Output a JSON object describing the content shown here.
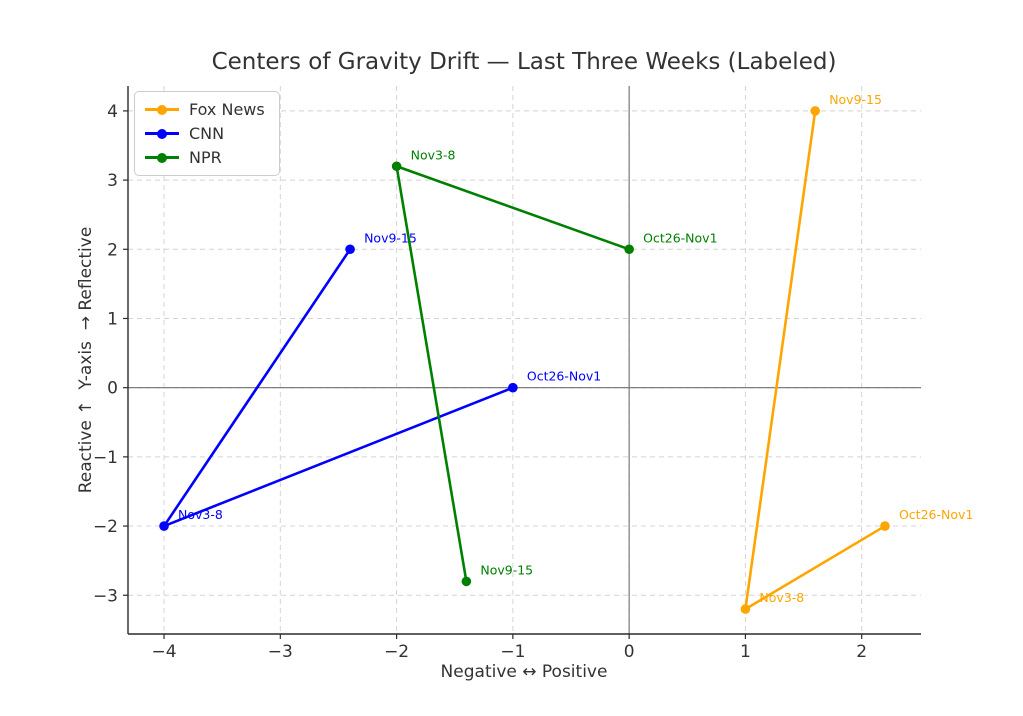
{
  "chart_data": {
    "type": "line",
    "title": "Centers of Gravity Drift — Last Three Weeks (Labeled)",
    "xlabel": "Negative ↔ Positive",
    "ylabel": "Reactive ↑  Y-axis  → Reflective",
    "xlim": [
      -4.31,
      2.51
    ],
    "ylim": [
      -3.56,
      4.36
    ],
    "xticks": [
      -4,
      -3,
      -2,
      -1,
      0,
      1,
      2
    ],
    "xtick_labels": [
      "−4",
      "−3",
      "−2",
      "−1",
      "0",
      "1",
      "2"
    ],
    "yticks": [
      4,
      3,
      2,
      1,
      0,
      -1,
      -2,
      -3
    ],
    "ytick_labels": [
      "4",
      "3",
      "2",
      "1",
      "0",
      "−1",
      "−2",
      "−3"
    ],
    "grid": true,
    "grid_style": "dashed",
    "zero_lines": true,
    "legend_position": "upper left",
    "series": [
      {
        "name": "Fox News",
        "color": "#FFA500",
        "points": [
          {
            "label": "Oct26-Nov1",
            "x": 2.2,
            "y": -2.0
          },
          {
            "label": "Nov3-8",
            "x": 1.0,
            "y": -3.2
          },
          {
            "label": "Nov9-15",
            "x": 1.6,
            "y": 4.0
          }
        ]
      },
      {
        "name": "CNN",
        "color": "#0000FF",
        "points": [
          {
            "label": "Oct26-Nov1",
            "x": -1.0,
            "y": 0.0
          },
          {
            "label": "Nov3-8",
            "x": -4.0,
            "y": -2.0
          },
          {
            "label": "Nov9-15",
            "x": -2.4,
            "y": 2.0
          }
        ]
      },
      {
        "name": "NPR",
        "color": "#008000",
        "points": [
          {
            "label": "Oct26-Nov1",
            "x": 0.0,
            "y": 2.0
          },
          {
            "label": "Nov3-8",
            "x": -2.0,
            "y": 3.2
          },
          {
            "label": "Nov9-15",
            "x": -1.4,
            "y": -2.8
          }
        ]
      }
    ],
    "colors": {
      "grid": "#d4d4d4",
      "spine": "#2b2b2b",
      "zero_line": "#707070",
      "tick_text": "#333333"
    }
  }
}
